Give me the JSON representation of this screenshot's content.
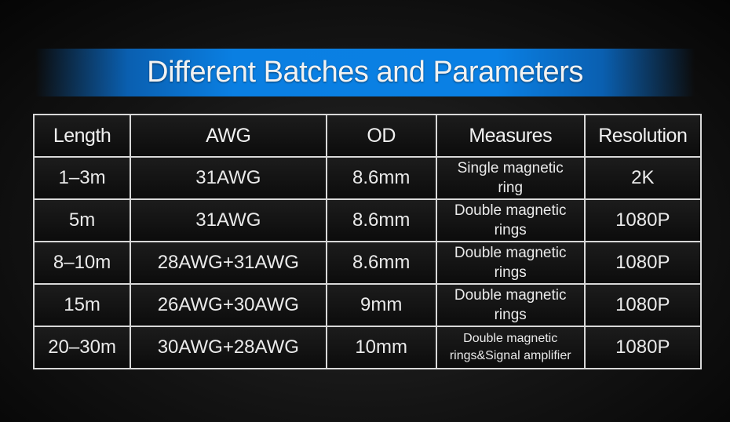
{
  "title": "Different Batches and Parameters",
  "colors": {
    "banner": "#0a80e4",
    "background": "#111111",
    "grid": "#d8d8d8"
  },
  "table": {
    "headers": [
      "Length",
      "AWG",
      "OD",
      "Measures",
      "Resolution"
    ],
    "rows": [
      [
        "1–3m",
        "31AWG",
        "8.6mm",
        "Single magnetic ring",
        "2K"
      ],
      [
        "5m",
        "31AWG",
        "8.6mm",
        "Double magnetic rings",
        "1080P"
      ],
      [
        "8–10m",
        "28AWG+31AWG",
        "8.6mm",
        "Double magnetic rings",
        "1080P"
      ],
      [
        "15m",
        "26AWG+30AWG",
        "9mm",
        "Double magnetic rings",
        "1080P"
      ],
      [
        "20–30m",
        "30AWG+28AWG",
        "10mm",
        "Double magnetic rings&Signal amplifier",
        "1080P"
      ]
    ]
  }
}
